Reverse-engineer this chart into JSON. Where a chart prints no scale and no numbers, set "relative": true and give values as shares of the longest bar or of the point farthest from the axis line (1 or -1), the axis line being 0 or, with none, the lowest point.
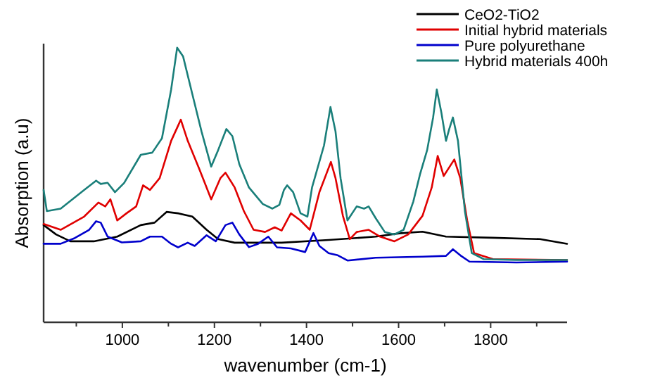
{
  "chart_data": {
    "type": "line",
    "relative": true,
    "xlabel": "wavenumber (cm-1)",
    "ylabel": "Absorption (a.u)",
    "legend": "top right",
    "grid": false,
    "marker": "none",
    "line_style": "solid",
    "xlim": [
      829,
      1966
    ],
    "xticks": [
      {
        "value": 900,
        "label": null
      },
      1000,
      {
        "value": 1100,
        "label": null
      },
      1200,
      {
        "value": 1300,
        "label": null
      },
      1400,
      {
        "value": 1500,
        "label": null
      },
      1600,
      {
        "value": 1700,
        "label": null
      },
      1800,
      {
        "value": 1900,
        "label": null
      }
    ],
    "series": [
      {
        "name": "CeO2-TiO2",
        "color": "#000000",
        "x": [
          829,
          856,
          887,
          938,
          989,
          1040,
          1070,
          1096,
          1121,
          1152,
          1183,
          1208,
          1244,
          1346,
          1448,
          1550,
          1601,
          1652,
          1703,
          1805,
          1907,
          1966
        ],
        "values": [
          0.354,
          0.32,
          0.295,
          0.295,
          0.312,
          0.354,
          0.363,
          0.402,
          0.397,
          0.385,
          0.337,
          0.303,
          0.29,
          0.29,
          0.3,
          0.312,
          0.324,
          0.33,
          0.312,
          0.308,
          0.303,
          0.286
        ]
      },
      {
        "name": "Initial hybrid materials",
        "color": "#e00000",
        "x": [
          829,
          866,
          917,
          948,
          963,
          974,
          989,
          1009,
          1030,
          1045,
          1060,
          1081,
          1106,
          1127,
          1142,
          1167,
          1193,
          1213,
          1224,
          1244,
          1264,
          1285,
          1310,
          1331,
          1346,
          1366,
          1387,
          1407,
          1428,
          1453,
          1463,
          1479,
          1494,
          1509,
          1535,
          1560,
          1591,
          1621,
          1652,
          1672,
          1685,
          1698,
          1708,
          1721,
          1734,
          1749,
          1764,
          1805,
          1966
        ],
        "values": [
          0.358,
          0.337,
          0.385,
          0.436,
          0.422,
          0.448,
          0.371,
          0.397,
          0.422,
          0.499,
          0.482,
          0.525,
          0.661,
          0.738,
          0.661,
          0.559,
          0.448,
          0.525,
          0.545,
          0.491,
          0.405,
          0.337,
          0.329,
          0.346,
          0.334,
          0.397,
          0.371,
          0.337,
          0.474,
          0.584,
          0.525,
          0.388,
          0.303,
          0.329,
          0.337,
          0.312,
          0.295,
          0.32,
          0.388,
          0.491,
          0.606,
          0.533,
          0.559,
          0.593,
          0.525,
          0.371,
          0.252,
          0.23,
          0.227
        ]
      },
      {
        "name": "Pure polyurethane",
        "color": "#0000cc",
        "x": [
          829,
          866,
          897,
          928,
          943,
          953,
          968,
          999,
          1040,
          1060,
          1086,
          1106,
          1121,
          1142,
          1157,
          1183,
          1203,
          1224,
          1239,
          1254,
          1275,
          1295,
          1317,
          1336,
          1366,
          1397,
          1415,
          1428,
          1448,
          1468,
          1489,
          1550,
          1652,
          1703,
          1718,
          1734,
          1754,
          1856,
          1966
        ],
        "values": [
          0.286,
          0.286,
          0.307,
          0.337,
          0.368,
          0.363,
          0.312,
          0.291,
          0.295,
          0.312,
          0.312,
          0.286,
          0.273,
          0.29,
          0.278,
          0.317,
          0.295,
          0.354,
          0.363,
          0.32,
          0.274,
          0.286,
          0.312,
          0.273,
          0.269,
          0.256,
          0.325,
          0.278,
          0.252,
          0.244,
          0.225,
          0.235,
          0.239,
          0.242,
          0.266,
          0.244,
          0.221,
          0.218,
          0.221
        ]
      },
      {
        "name": "Hybrid materials 400h",
        "color": "#1a7f7a",
        "x": [
          829,
          836,
          866,
          917,
          943,
          953,
          968,
          984,
          1004,
          1040,
          1065,
          1086,
          1106,
          1119,
          1132,
          1152,
          1172,
          1193,
          1208,
          1226,
          1239,
          1254,
          1275,
          1305,
          1326,
          1341,
          1351,
          1358,
          1371,
          1387,
          1402,
          1412,
          1438,
          1452,
          1463,
          1474,
          1489,
          1509,
          1525,
          1535,
          1550,
          1570,
          1591,
          1611,
          1632,
          1647,
          1662,
          1675,
          1683,
          1693,
          1703,
          1710,
          1718,
          1729,
          1744,
          1759,
          1785,
          1856,
          1966
        ],
        "values": [
          0.482,
          0.405,
          0.414,
          0.482,
          0.516,
          0.504,
          0.508,
          0.474,
          0.508,
          0.61,
          0.618,
          0.67,
          0.848,
          1,
          0.968,
          0.831,
          0.695,
          0.567,
          0.627,
          0.704,
          0.678,
          0.576,
          0.491,
          0.431,
          0.414,
          0.428,
          0.482,
          0.499,
          0.474,
          0.397,
          0.385,
          0.491,
          0.644,
          0.784,
          0.695,
          0.525,
          0.371,
          0.422,
          0.414,
          0.422,
          0.38,
          0.329,
          0.32,
          0.337,
          0.44,
          0.542,
          0.627,
          0.746,
          0.848,
          0.763,
          0.661,
          0.704,
          0.746,
          0.661,
          0.405,
          0.252,
          0.23,
          0.227,
          0.227
        ]
      }
    ]
  }
}
